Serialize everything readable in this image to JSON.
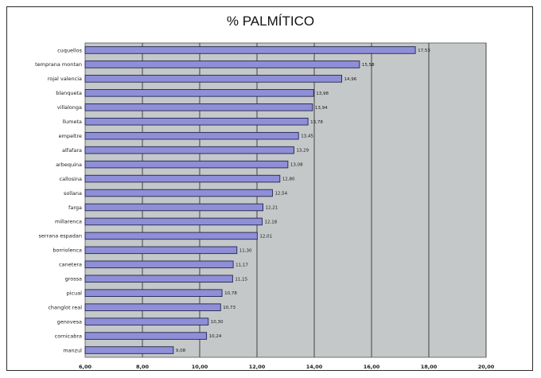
{
  "chart_data": {
    "type": "bar",
    "orientation": "horizontal",
    "title": "% PALMÍTICO",
    "xlabel": "",
    "ylabel": "",
    "xlim": [
      6,
      20
    ],
    "x_ticks": [
      6,
      8,
      10,
      12,
      14,
      16,
      18,
      20
    ],
    "x_tick_labels": [
      "6,00",
      "8,00",
      "10,00",
      "12,00",
      "14,00",
      "16,00",
      "18,00",
      "20,00"
    ],
    "grid": true,
    "legend": "none",
    "categories": [
      "cuquellos",
      "temprana montan",
      "rojal valencia",
      "blanqueta",
      "villalonga",
      "llumeta",
      "empeltre",
      "alfafara",
      "arbequina",
      "callosina",
      "sollana",
      "farga",
      "millarenca",
      "serrana espadan",
      "borriolenca",
      "canetera",
      "grossa",
      "picual",
      "changlot real",
      "genovesa",
      "cornicabra",
      "manzul"
    ],
    "values": [
      17.53,
      15.58,
      14.96,
      13.98,
      13.94,
      13.78,
      13.45,
      13.29,
      13.08,
      12.8,
      12.54,
      12.21,
      12.18,
      12.01,
      11.3,
      11.17,
      11.15,
      10.78,
      10.73,
      10.3,
      10.24,
      9.08
    ],
    "value_labels": [
      "17,53",
      "15,58",
      "14,96",
      "13,98",
      "13,94",
      "13,78",
      "13,45",
      "13,29",
      "13,08",
      "12,80",
      "12,54",
      "12,21",
      "12,18",
      "12,01",
      "11,30",
      "11,17",
      "11,15",
      "10,78",
      "10,73",
      "10,30",
      "10,24",
      "9,08"
    ],
    "colors": {
      "bar_fill": "#8f8fd8",
      "bar_stroke": "#23234f",
      "plot_bg": "#c4c8c8",
      "grid": "#454545"
    }
  }
}
